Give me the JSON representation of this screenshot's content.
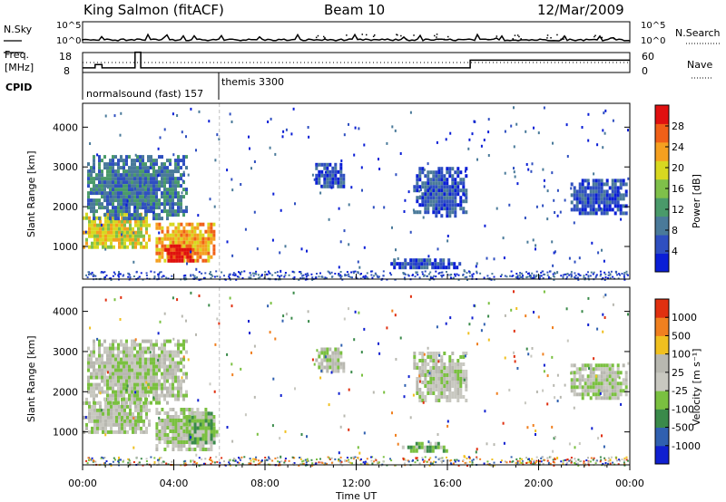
{
  "header": {
    "station": "King Salmon (fitACF)",
    "beam": "Beam 10",
    "date": "12/Mar/2009"
  },
  "status_panel": {
    "nsky_label": "N.Sky",
    "nsearch_label": "N.Search",
    "freq_label_1": "Freq.",
    "freq_label_2": "[MHz]",
    "nave_label": "Nave",
    "cpid_label": "CPID",
    "left_ticks_counts": [
      "10^5",
      "10^0"
    ],
    "right_ticks_counts": [
      "10^5",
      "10^0"
    ],
    "freq_ticks": [
      "18",
      "8"
    ],
    "nave_ticks": [
      "60",
      "0"
    ],
    "cpid_entries": [
      {
        "text": "normalsound (fast) 157",
        "start_hour": 0.0
      },
      {
        "text": "themis 3300",
        "start_hour": 6.0
      }
    ],
    "freq_mhz": [
      {
        "start_hour": 0.0,
        "end_hour": 0.55,
        "value": 10.3
      },
      {
        "start_hour": 0.55,
        "end_hour": 0.85,
        "value": 12.0
      },
      {
        "start_hour": 0.85,
        "end_hour": 2.3,
        "value": 10.3
      },
      {
        "start_hour": 2.3,
        "end_hour": 2.55,
        "value": 18.2
      },
      {
        "start_hour": 2.55,
        "end_hour": 17.0,
        "value": 10.3
      },
      {
        "start_hour": 17.0,
        "end_hour": 24.0,
        "value": 14.2
      }
    ]
  },
  "panels": {
    "power": {
      "ylabel": "Slant Range [km]",
      "colorbar_label": "Power [dB]",
      "colorbar_ticks": [
        "28",
        "24",
        "20",
        "16",
        "12",
        "8",
        "4"
      ]
    },
    "velocity": {
      "ylabel": "Slant Range [km]",
      "colorbar_label": "Velocity [m s⁻¹]",
      "colorbar_ticks": [
        "1000",
        "500",
        "100",
        "25",
        "-25",
        "-100",
        "-500",
        "-1000"
      ]
    }
  },
  "colors": {
    "power_scale": [
      "#0a1ed6",
      "#2f4fc0",
      "#4a7a9a",
      "#4a9a6a",
      "#7fc04a",
      "#d8d820",
      "#f5a020",
      "#f06018",
      "#e01010"
    ],
    "velocity_scale": [
      "#1020d0",
      "#3060b0",
      "#3a8a4a",
      "#7ac040",
      "#c8c8c0",
      "#b8b8b0",
      "#f0c020",
      "#f08020",
      "#e03010"
    ],
    "ground_scatter": "#b8b8b0"
  },
  "chart_data": {
    "type": "heatmap",
    "xlabel": "Time UT",
    "x_tick_labels": [
      "00:00",
      "04:00",
      "08:00",
      "12:00",
      "16:00",
      "20:00",
      "00:00"
    ],
    "x_range_hours": [
      0,
      24
    ],
    "y_range_km": [
      180,
      4600
    ],
    "y_tick_labels": [
      "1000",
      "2000",
      "3000",
      "4000"
    ],
    "y_ticks_km": [
      1000,
      2000,
      3000,
      4000
    ],
    "power_regions": [
      {
        "t0": 0.0,
        "t1": 2.9,
        "r0": 950,
        "r1": 1850,
        "level": 5
      },
      {
        "t0": 0.2,
        "t1": 4.5,
        "r0": 1700,
        "r1": 3300,
        "level": 2
      },
      {
        "t0": 3.2,
        "t1": 5.8,
        "r0": 600,
        "r1": 1600,
        "level": 6
      },
      {
        "t0": 3.6,
        "t1": 4.9,
        "r0": 650,
        "r1": 1050,
        "level": 8
      },
      {
        "t0": 10.2,
        "t1": 11.4,
        "r0": 2500,
        "r1": 3100,
        "level": 1
      },
      {
        "t0": 14.5,
        "t1": 16.8,
        "r0": 1800,
        "r1": 3000,
        "level": 1
      },
      {
        "t0": 21.4,
        "t1": 23.8,
        "r0": 1850,
        "r1": 2700,
        "level": 1
      },
      {
        "t0": 13.5,
        "t1": 16.5,
        "r0": 500,
        "r1": 700,
        "level": 1
      }
    ],
    "velocity_regions": [
      {
        "t0": 0.0,
        "t1": 2.9,
        "r0": 950,
        "r1": 1850,
        "level": 4
      },
      {
        "t0": 0.2,
        "t1": 4.5,
        "r0": 1700,
        "r1": 3300,
        "level": 4
      },
      {
        "t0": 3.2,
        "t1": 5.8,
        "r0": 600,
        "r1": 1600,
        "level": 4
      },
      {
        "t0": 4.4,
        "t1": 5.9,
        "r0": 700,
        "r1": 1500,
        "level": 3
      },
      {
        "t0": 10.2,
        "t1": 11.4,
        "r0": 2500,
        "r1": 3100,
        "level": 4
      },
      {
        "t0": 14.5,
        "t1": 16.8,
        "r0": 1800,
        "r1": 3000,
        "level": 4
      },
      {
        "t0": 21.4,
        "t1": 23.8,
        "r0": 1850,
        "r1": 2700,
        "level": 4
      },
      {
        "t0": 14.0,
        "t1": 16.0,
        "r0": 550,
        "r1": 750,
        "level": 3
      }
    ]
  }
}
